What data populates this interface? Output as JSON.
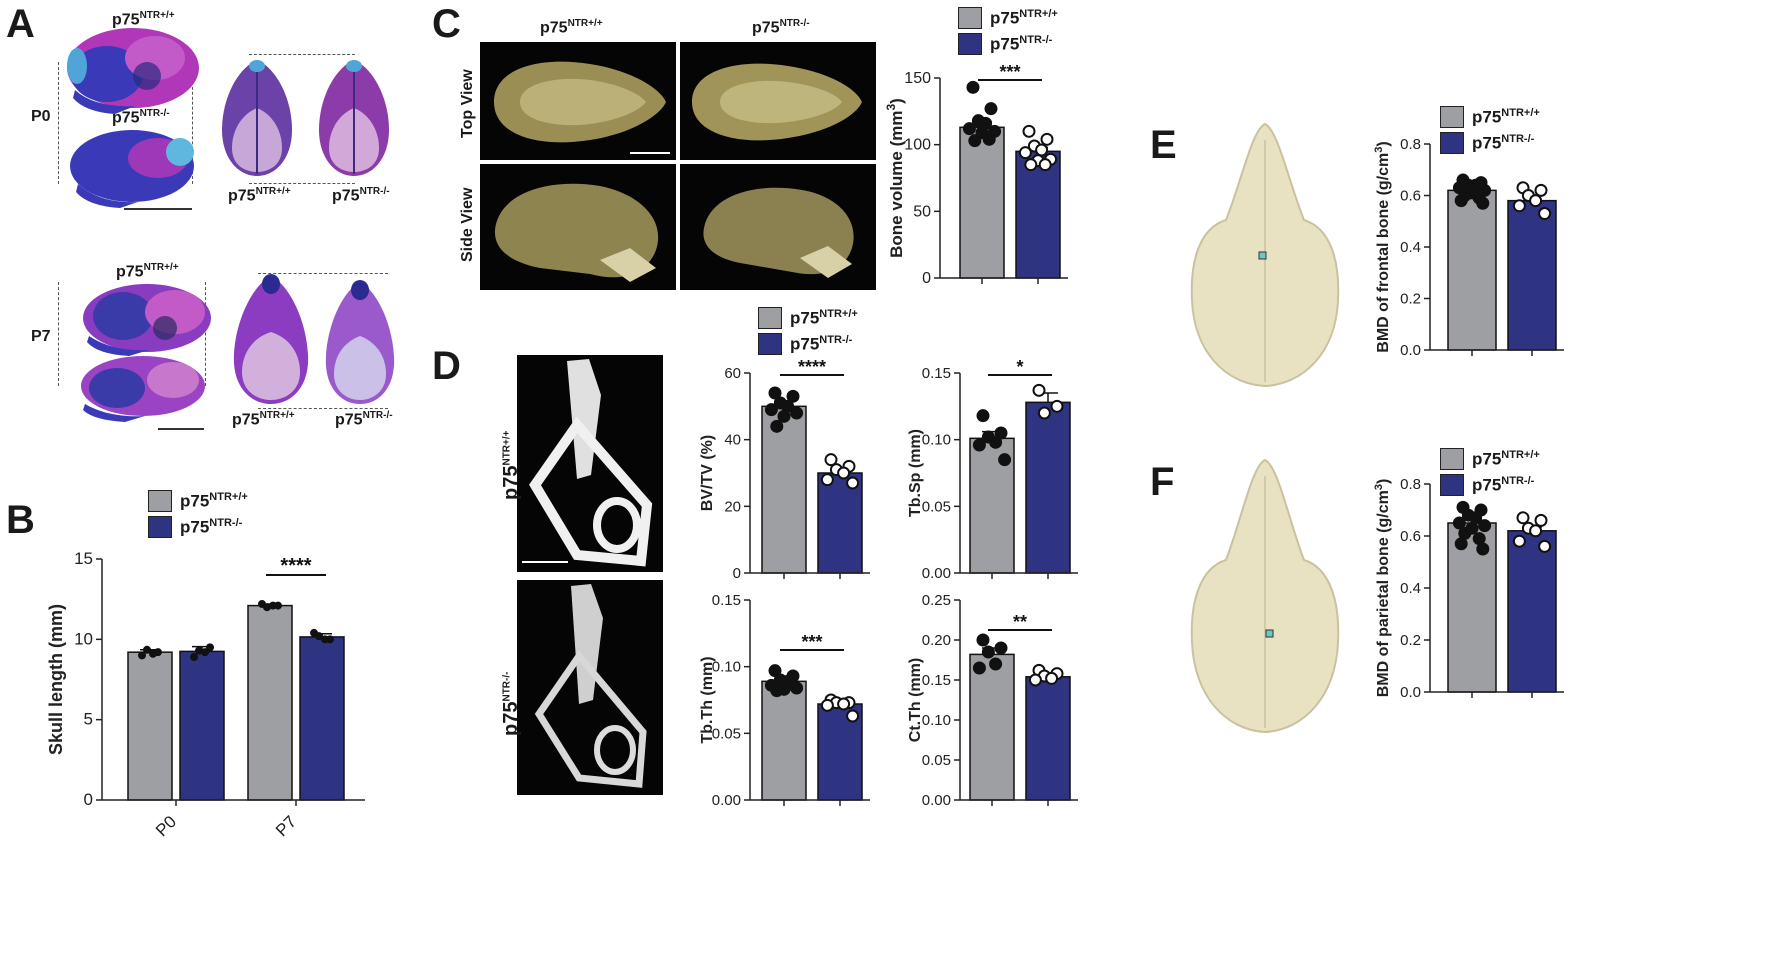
{
  "panels": {
    "A": "A",
    "B": "B",
    "C": "C",
    "D": "D",
    "E": "E",
    "F": "F"
  },
  "genotypes": {
    "wt_base": "p75",
    "wt_sup": "NTR+/+",
    "ko_base": "p75",
    "ko_sup": "NTR-/-"
  },
  "panel_a": {
    "p0": "P0",
    "p7": "P7"
  },
  "panel_c": {
    "top_view": "Top View",
    "side_view": "Side View"
  },
  "colors": {
    "wt": "#9e9fa3",
    "ko": "#2e3382",
    "magenta": "#b038b8",
    "blue": "#3a3ab8",
    "skull_beige": "#e8e2c2",
    "ct_olive": "#8a8350"
  },
  "chart_data": [
    {
      "id": "B",
      "type": "bar",
      "ylabel": "Skull length (mm)",
      "categories": [
        "P0",
        "P7"
      ],
      "ylim": [
        0,
        15
      ],
      "yticks": [
        "0",
        "5",
        "10",
        "15"
      ],
      "series": [
        {
          "name": "p75NTR+/+",
          "values": [
            9.2,
            12.1
          ],
          "errors": [
            0.15,
            0.1
          ]
        },
        {
          "name": "p75NTR-/-",
          "values": [
            9.25,
            10.15
          ],
          "errors": [
            0.3,
            0.2
          ]
        }
      ],
      "points": [
        [
          [
            9.0,
            9.2,
            9.35,
            9.1
          ],
          [
            8.9,
            9.5,
            9.3,
            9.2
          ]
        ],
        [
          [
            12.2,
            12.1,
            12.0,
            12.1
          ],
          [
            10.4,
            10.0,
            10.2,
            10.0
          ]
        ]
      ],
      "significance": [
        {
          "group": 1,
          "label": "****"
        }
      ]
    },
    {
      "id": "C",
      "type": "bar",
      "ylabel": "Bone volume (mm3)",
      "categories": [
        "p75NTR+/+",
        "p75NTR-/-"
      ],
      "ylim": [
        0,
        150
      ],
      "yticks": [
        "0",
        "50",
        "100",
        "150"
      ],
      "values": [
        113,
        95
      ],
      "errors": [
        4,
        3
      ],
      "points": [
        [
          143,
          127,
          118,
          116,
          112,
          110,
          109,
          103,
          104
        ],
        [
          110,
          104,
          99,
          96,
          94,
          89,
          88,
          85,
          85
        ]
      ],
      "significance": [
        {
          "label": "***"
        }
      ]
    },
    {
      "id": "D1",
      "type": "bar",
      "ylabel": "BV/TV (%)",
      "categories": [
        "p75NTR+/+",
        "p75NTR-/-"
      ],
      "ylim": [
        0,
        60
      ],
      "yticks": [
        "0",
        "20",
        "40",
        "60"
      ],
      "values": [
        50,
        30
      ],
      "errors": [
        1.5,
        1.2
      ],
      "points": [
        [
          54,
          53,
          51,
          50,
          49,
          48,
          47,
          44
        ],
        [
          34,
          32,
          31,
          30,
          28,
          27
        ]
      ],
      "significance": [
        {
          "label": "****"
        }
      ]
    },
    {
      "id": "D2",
      "type": "bar",
      "ylabel": "Tb.Sp (mm)",
      "categories": [
        "p75NTR+/+",
        "p75NTR-/-"
      ],
      "ylim": [
        0,
        0.15
      ],
      "yticks": [
        "0.00",
        "0.05",
        "0.10",
        "0.15"
      ],
      "values": [
        0.101,
        0.128
      ],
      "errors": [
        0.005,
        0.007
      ],
      "points": [
        [
          0.118,
          0.105,
          0.102,
          0.098,
          0.096,
          0.085
        ],
        [
          0.137,
          0.125,
          0.12
        ]
      ],
      "significance": [
        {
          "label": "*"
        }
      ]
    },
    {
      "id": "D3",
      "type": "bar",
      "ylabel": "Tb.Th (mm)",
      "categories": [
        "p75NTR+/+",
        "p75NTR-/-"
      ],
      "ylim": [
        0,
        0.15
      ],
      "yticks": [
        "0.00",
        "0.05",
        "0.10",
        "0.15"
      ],
      "values": [
        0.089,
        0.072
      ],
      "errors": [
        0.002,
        0.002
      ],
      "points": [
        [
          0.097,
          0.093,
          0.09,
          0.089,
          0.086,
          0.084,
          0.083,
          0.082
        ],
        [
          0.075,
          0.073,
          0.073,
          0.072,
          0.071,
          0.063
        ]
      ],
      "significance": [
        {
          "label": "***"
        }
      ]
    },
    {
      "id": "D4",
      "type": "bar",
      "ylabel": "Ct.Th (mm)",
      "categories": [
        "p75NTR+/+",
        "p75NTR-/-"
      ],
      "ylim": [
        0,
        0.25
      ],
      "yticks": [
        "0.00",
        "0.05",
        "0.10",
        "0.15",
        "0.20",
        "0.25"
      ],
      "values": [
        0.182,
        0.154
      ],
      "errors": [
        0.008,
        0.003
      ],
      "points": [
        [
          0.2,
          0.19,
          0.185,
          0.17,
          0.165
        ],
        [
          0.162,
          0.158,
          0.155,
          0.152,
          0.15
        ]
      ],
      "significance": [
        {
          "label": "**"
        }
      ]
    },
    {
      "id": "E",
      "type": "bar",
      "ylabel": "BMD of frontal bone (g/cm3)",
      "categories": [
        "p75NTR+/+",
        "p75NTR-/-"
      ],
      "ylim": [
        0,
        0.8
      ],
      "yticks": [
        "0.0",
        "0.2",
        "0.4",
        "0.6",
        "0.8"
      ],
      "values": [
        0.62,
        0.58
      ],
      "errors": [
        0.01,
        0.02
      ],
      "points": [
        [
          0.66,
          0.65,
          0.64,
          0.64,
          0.63,
          0.62,
          0.61,
          0.6,
          0.59,
          0.58,
          0.57
        ],
        [
          0.63,
          0.62,
          0.6,
          0.58,
          0.56,
          0.53
        ]
      ],
      "significance": []
    },
    {
      "id": "F",
      "type": "bar",
      "ylabel": "BMD of parietal bone (g/cm3)",
      "categories": [
        "p75NTR+/+",
        "p75NTR-/-"
      ],
      "ylim": [
        0,
        0.8
      ],
      "yticks": [
        "0.0",
        "0.2",
        "0.4",
        "0.6",
        "0.8"
      ],
      "values": [
        0.65,
        0.62
      ],
      "errors": [
        0.015,
        0.015
      ],
      "points": [
        [
          0.71,
          0.7,
          0.68,
          0.67,
          0.65,
          0.64,
          0.63,
          0.61,
          0.59,
          0.57,
          0.55
        ],
        [
          0.67,
          0.66,
          0.63,
          0.62,
          0.58,
          0.56
        ]
      ],
      "significance": []
    }
  ]
}
